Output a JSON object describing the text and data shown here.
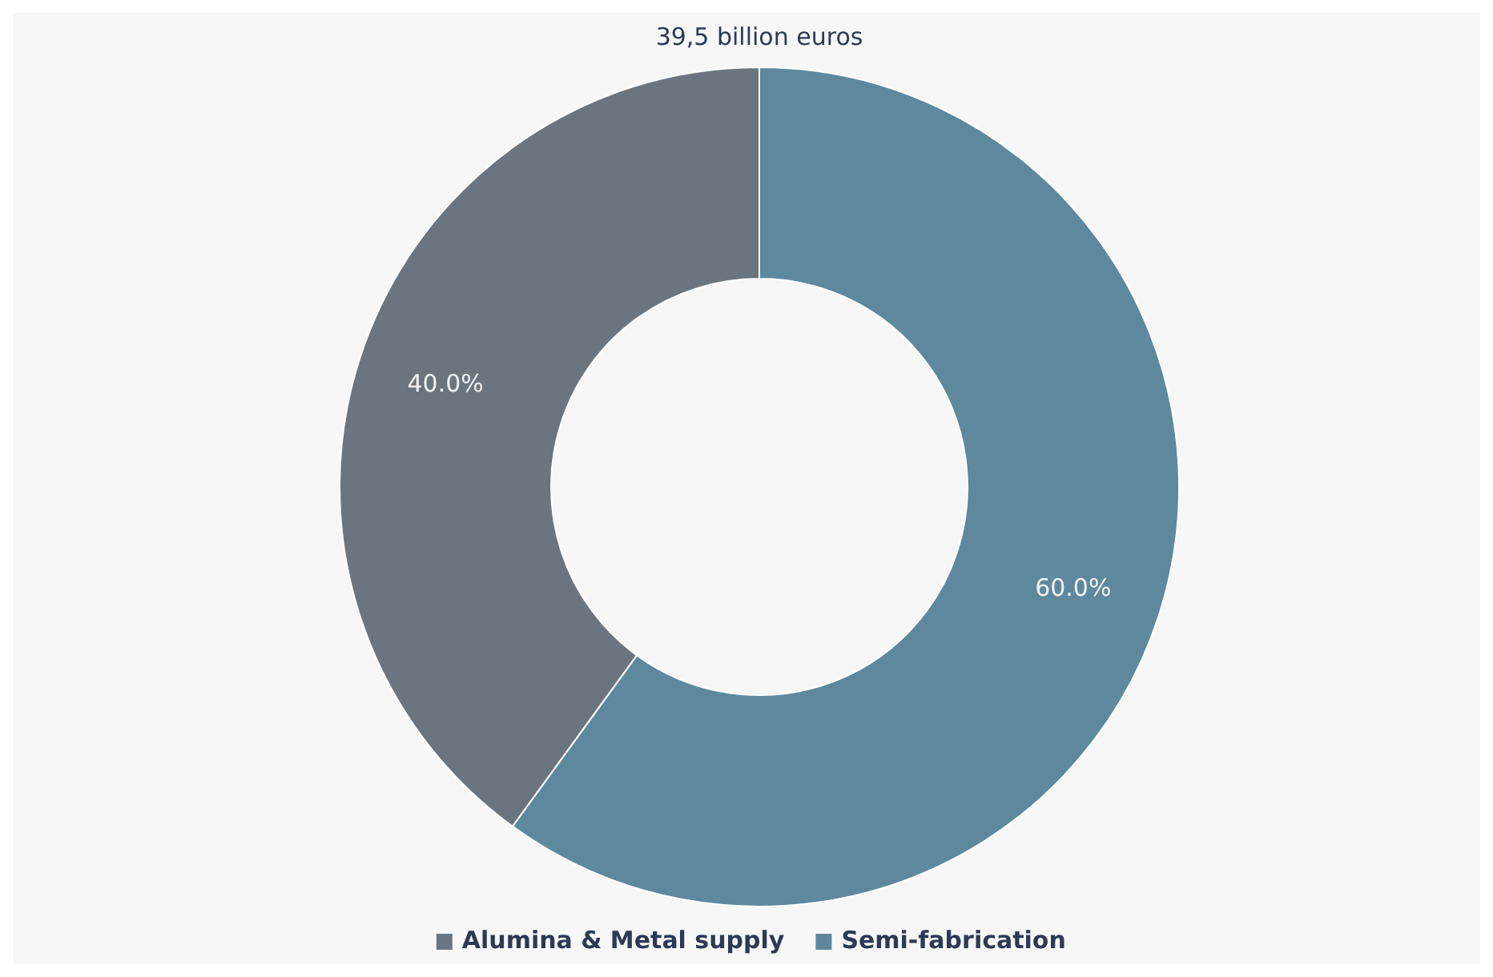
{
  "chart_data": {
    "type": "donut",
    "title": "39,5 billion euros",
    "categories": [
      "Alumina & Metal supply",
      "Semi-fabrication"
    ],
    "values": [
      40.0,
      60.0
    ],
    "colors": [
      "#6b7580",
      "#5d889e"
    ],
    "value_labels": [
      "40.0%",
      "60.0%"
    ],
    "legend": "bottom"
  }
}
